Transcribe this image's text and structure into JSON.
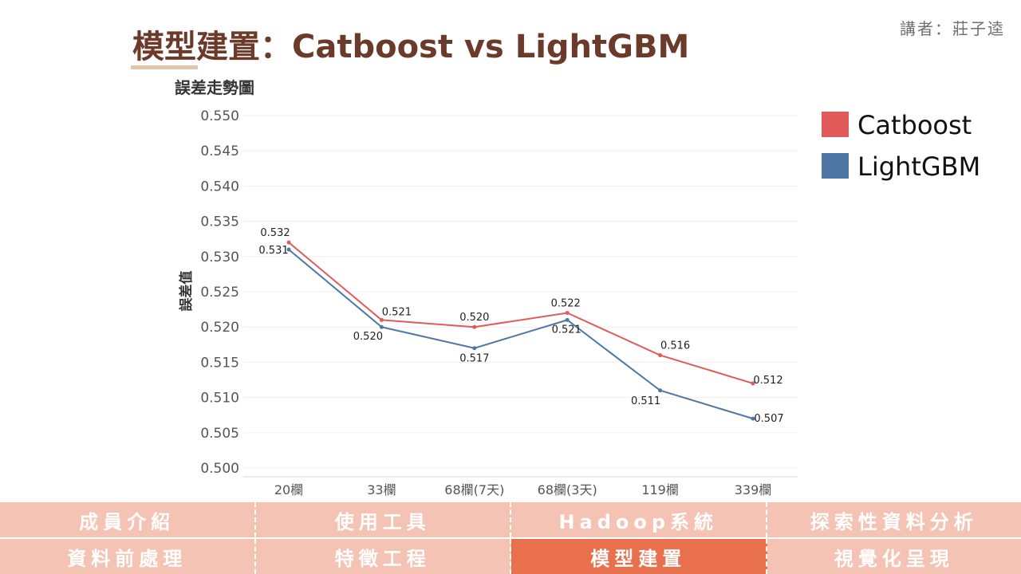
{
  "slide": {
    "title": "模型建置：Catboost vs LightGBM",
    "speaker": "講者：莊子逵"
  },
  "chart_data": {
    "type": "line",
    "title": "誤差走勢圖",
    "xlabel": "",
    "ylabel": "誤差值",
    "categories": [
      "20欄",
      "33欄",
      "68欄(7天)",
      "68欄(3天)",
      "119欄",
      "339欄"
    ],
    "yticks": [
      "0.500",
      "0.505",
      "0.510",
      "0.515",
      "0.520",
      "0.525",
      "0.530",
      "0.535",
      "0.540",
      "0.545",
      "0.550"
    ],
    "ylim": [
      0.5,
      0.55
    ],
    "grid": true,
    "legend_position": "top-right",
    "series": [
      {
        "name": "Catboost",
        "color": "#e05a5a",
        "values": [
          0.532,
          0.521,
          0.52,
          0.522,
          0.516,
          0.512
        ],
        "labels": [
          "0.532",
          "0.521",
          "0.520",
          "0.522",
          "0.516",
          "0.512"
        ]
      },
      {
        "name": "LightGBM",
        "color": "#4f77a6",
        "values": [
          0.531,
          0.52,
          0.517,
          0.521,
          0.511,
          0.507
        ],
        "labels": [
          "0.531",
          "0.520",
          "0.517",
          "0.521",
          "0.511",
          "0.507"
        ]
      }
    ]
  },
  "nav": {
    "row1": [
      "成員介紹",
      "使用工具",
      "Hadoop系統",
      "探索性資料分析"
    ],
    "row2": [
      "資料前處理",
      "特徵工程",
      "模型建置",
      "視覺化呈現"
    ],
    "active": "模型建置"
  }
}
